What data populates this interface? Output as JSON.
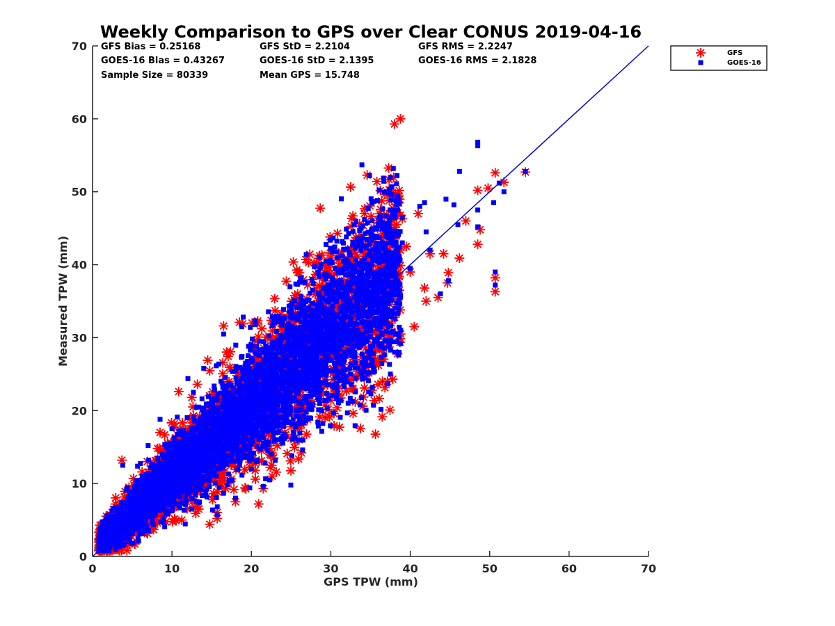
{
  "chart_data": {
    "type": "scatter",
    "title": "Weekly Comparison to GPS over Clear CONUS 2019-04-16",
    "xlabel": "GPS TPW (mm)",
    "ylabel": "Measured TPW (mm)",
    "xlim": [
      0,
      70
    ],
    "ylim": [
      0,
      70
    ],
    "xticks": [
      "0",
      "10",
      "20",
      "30",
      "40",
      "50",
      "60",
      "70"
    ],
    "yticks": [
      "0",
      "10",
      "20",
      "30",
      "40",
      "50",
      "60",
      "70"
    ],
    "grid": false,
    "legend_position": "outside top-right",
    "stats": [
      [
        "GFS Bias = 0.25168",
        "GFS StD = 2.2104",
        "GFS RMS = 2.2247"
      ],
      [
        "GOES-16 Bias = 0.43267",
        "GOES-16 StD = 2.1395",
        "GOES-16 RMS = 2.1828"
      ],
      [
        "Sample Size = 80339",
        "Mean GPS = 15.748",
        ""
      ]
    ],
    "reference_line": {
      "label": "1:1",
      "x": [
        0,
        70
      ],
      "y": [
        0,
        70
      ],
      "color": "#0000e6"
    },
    "series": [
      {
        "name": "GFS",
        "marker": "asterisk",
        "color": "#ff0000",
        "bias": 0.25168,
        "std": 2.2104,
        "points": [
          [
            54.5,
            52.7
          ],
          [
            50.7,
            52.6
          ],
          [
            51.8,
            51.3
          ],
          [
            48.5,
            50.2
          ],
          [
            49.8,
            50.5
          ],
          [
            48.5,
            42.8
          ],
          [
            48.8,
            44.8
          ],
          [
            50.7,
            38.2
          ],
          [
            50.7,
            36.3
          ],
          [
            46.2,
            40.9
          ],
          [
            47.0,
            46.0
          ],
          [
            44.7,
            37.5
          ],
          [
            43.5,
            35.5
          ],
          [
            44.2,
            41.5
          ],
          [
            44.8,
            38.9
          ],
          [
            42.0,
            35.0
          ],
          [
            41.8,
            36.8
          ],
          [
            37.2,
            44.2
          ],
          [
            39.0,
            46.3
          ],
          [
            41.0,
            47.0
          ],
          [
            34.0,
            42.7
          ],
          [
            38.4,
            27.8
          ],
          [
            37.8,
            24.3
          ],
          [
            36.5,
            24.0
          ],
          [
            40.5,
            31.5
          ],
          [
            32.8,
            24.5
          ],
          [
            30.5,
            23.0
          ],
          [
            27.5,
            20.5
          ],
          [
            28.5,
            22.0
          ],
          [
            25.0,
            17.8
          ],
          [
            24.2,
            17.0
          ],
          [
            22.0,
            15.0
          ],
          [
            26.0,
            16.0
          ],
          [
            22.8,
            13.5
          ],
          [
            26.3,
            14.2
          ],
          [
            20.5,
            10.6
          ],
          [
            21.5,
            9.3
          ],
          [
            22.6,
            11.0
          ],
          [
            19.2,
            9.4
          ],
          [
            18.0,
            7.5
          ],
          [
            15.7,
            5.2
          ],
          [
            15.7,
            6.0
          ],
          [
            13.0,
            5.9
          ],
          [
            16.5,
            31.6
          ],
          [
            18.5,
            32.1
          ],
          [
            20.8,
            32.3
          ],
          [
            14.5,
            26.9
          ],
          [
            12.5,
            21.8
          ],
          [
            13.2,
            23.6
          ],
          [
            8.5,
            17.0
          ],
          [
            10.3,
            18.2
          ],
          [
            3.7,
            13.2
          ],
          [
            8.2,
            14.8
          ],
          [
            1.2,
            3.0
          ],
          [
            2.5,
            2.0
          ],
          [
            5.0,
            3.5
          ],
          [
            7.0,
            5.0
          ],
          [
            9.0,
            6.5
          ],
          [
            11.0,
            8.5
          ],
          [
            14.0,
            11.5
          ],
          [
            17.0,
            14.5
          ],
          [
            20.0,
            17.5
          ],
          [
            23.0,
            20.5
          ],
          [
            26.0,
            23.5
          ],
          [
            29.0,
            27.0
          ],
          [
            32.0,
            30.0
          ],
          [
            35.0,
            33.0
          ],
          [
            38.0,
            36.5
          ],
          [
            40.0,
            39.0
          ],
          [
            42.5,
            41.5
          ],
          [
            4.0,
            6.5
          ],
          [
            6.5,
            9.5
          ],
          [
            9.5,
            13.0
          ],
          [
            12.5,
            16.0
          ],
          [
            15.5,
            19.5
          ],
          [
            18.5,
            23.0
          ],
          [
            21.5,
            26.5
          ],
          [
            24.5,
            29.5
          ],
          [
            27.5,
            32.0
          ],
          [
            30.5,
            35.0
          ],
          [
            33.5,
            37.5
          ],
          [
            36.5,
            39.5
          ],
          [
            39.5,
            42.5
          ],
          [
            3.0,
            1.5
          ],
          [
            6.0,
            3.8
          ],
          [
            10.0,
            7.2
          ],
          [
            16.0,
            12.0
          ],
          [
            19.0,
            14.8
          ],
          [
            24.0,
            19.2
          ],
          [
            31.0,
            25.5
          ],
          [
            35.5,
            28.5
          ],
          [
            38.8,
            30.5
          ],
          [
            28.0,
            24.0
          ],
          [
            33.0,
            27.0
          ],
          [
            12.0,
            15.0
          ]
        ]
      },
      {
        "name": "GOES-16",
        "marker": "square",
        "color": "#0000ff",
        "bias": 0.43267,
        "std": 2.1395,
        "points": [
          [
            48.5,
            56.8
          ],
          [
            48.5,
            56.3
          ],
          [
            46.2,
            52.8
          ],
          [
            51.2,
            51.2
          ],
          [
            54.5,
            52.8
          ],
          [
            51.8,
            50.0
          ],
          [
            50.5,
            48.5
          ],
          [
            48.5,
            47.5
          ],
          [
            50.7,
            39.0
          ],
          [
            50.7,
            37.2
          ],
          [
            48.5,
            45.2
          ],
          [
            37.6,
            49.6
          ],
          [
            41.2,
            48.0
          ],
          [
            41.8,
            48.5
          ],
          [
            39.0,
            46.5
          ],
          [
            44.5,
            49.0
          ],
          [
            45.5,
            48.2
          ],
          [
            46.0,
            45.5
          ],
          [
            44.8,
            37.8
          ],
          [
            43.8,
            36.0
          ],
          [
            34.0,
            40.5
          ],
          [
            38.6,
            28.0
          ],
          [
            37.5,
            25.0
          ],
          [
            32.5,
            25.0
          ],
          [
            30.0,
            23.5
          ],
          [
            27.0,
            21.0
          ],
          [
            28.0,
            22.5
          ],
          [
            24.5,
            18.5
          ],
          [
            23.5,
            17.2
          ],
          [
            21.5,
            15.5
          ],
          [
            25.5,
            16.3
          ],
          [
            21.5,
            9.6
          ],
          [
            19.8,
            9.4
          ],
          [
            22.3,
            10.5
          ],
          [
            18.0,
            8.0
          ],
          [
            15.7,
            5.7
          ],
          [
            15.7,
            6.8
          ],
          [
            12.5,
            6.5
          ],
          [
            16.5,
            30.5
          ],
          [
            18.8,
            31.5
          ],
          [
            20.5,
            31.8
          ],
          [
            14.0,
            25.8
          ],
          [
            12.7,
            22.5
          ],
          [
            8.5,
            18.8
          ],
          [
            10.0,
            17.5
          ],
          [
            3.8,
            12.5
          ],
          [
            7.0,
            15.2
          ],
          [
            1.0,
            2.5
          ],
          [
            2.5,
            1.8
          ],
          [
            5.0,
            3.2
          ],
          [
            7.0,
            5.5
          ],
          [
            9.0,
            7.0
          ],
          [
            11.0,
            9.0
          ],
          [
            14.0,
            12.0
          ],
          [
            17.0,
            15.0
          ],
          [
            20.0,
            18.5
          ],
          [
            23.0,
            21.5
          ],
          [
            26.0,
            24.5
          ],
          [
            29.0,
            28.0
          ],
          [
            32.0,
            31.0
          ],
          [
            35.0,
            34.0
          ],
          [
            38.0,
            37.0
          ],
          [
            40.0,
            39.5
          ],
          [
            42.5,
            42.0
          ],
          [
            4.0,
            7.0
          ],
          [
            6.5,
            10.0
          ],
          [
            9.5,
            13.5
          ],
          [
            12.5,
            16.8
          ],
          [
            15.5,
            20.2
          ],
          [
            18.5,
            23.8
          ],
          [
            21.5,
            27.0
          ],
          [
            24.5,
            30.0
          ],
          [
            27.5,
            33.0
          ],
          [
            30.5,
            35.5
          ],
          [
            33.5,
            38.0
          ],
          [
            36.5,
            40.5
          ],
          [
            39.0,
            43.0
          ],
          [
            3.0,
            2.0
          ],
          [
            6.0,
            4.2
          ],
          [
            10.0,
            8.0
          ],
          [
            16.0,
            13.0
          ],
          [
            19.0,
            15.8
          ],
          [
            24.0,
            20.0
          ],
          [
            31.0,
            26.5
          ],
          [
            35.5,
            29.5
          ],
          [
            38.8,
            31.0
          ],
          [
            28.0,
            25.0
          ],
          [
            33.0,
            28.0
          ],
          [
            12.0,
            15.5
          ],
          [
            42.0,
            44.5
          ]
        ]
      }
    ]
  }
}
